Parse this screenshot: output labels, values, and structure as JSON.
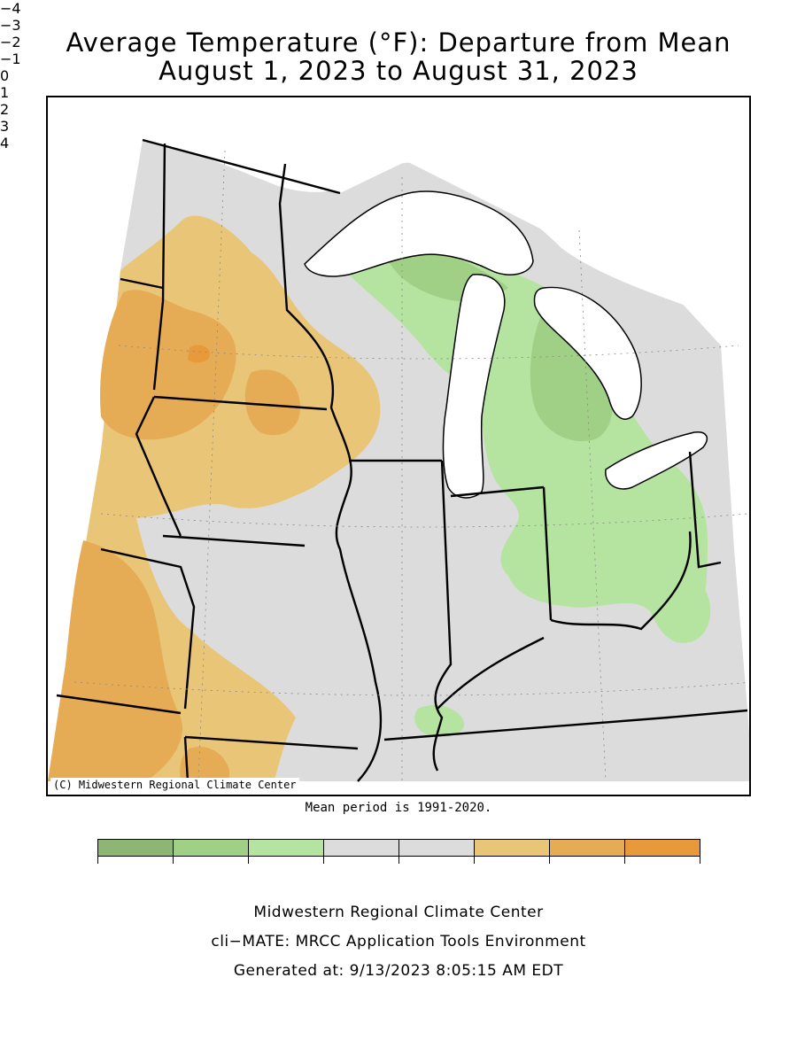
{
  "title_line1": "Average Temperature (°F): Departure from Mean",
  "title_line2": "August 1, 2023 to August 31, 2023",
  "copyright": "(C) Midwestern Regional Climate Center",
  "mean_period": "Mean period is 1991-2020.",
  "legend": {
    "bins": [
      {
        "from": -4,
        "to": -3,
        "color": "#8db574"
      },
      {
        "from": -3,
        "to": -2,
        "color": "#a0cf86"
      },
      {
        "from": -2,
        "to": -1,
        "color": "#b5e3a0"
      },
      {
        "from": -1,
        "to": 0,
        "color": "#dcdcdc"
      },
      {
        "from": 0,
        "to": 1,
        "color": "#dcdcdc"
      },
      {
        "from": 1,
        "to": 2,
        "color": "#e9c578"
      },
      {
        "from": 2,
        "to": 3,
        "color": "#e6ac55"
      },
      {
        "from": 3,
        "to": 4,
        "color": "#e89a3a"
      }
    ],
    "tick_labels": [
      "−4",
      "−3",
      "−2",
      "−1",
      "0",
      "1",
      "2",
      "3",
      "4"
    ]
  },
  "footer": {
    "line1": "Midwestern Regional Climate Center",
    "line2": "cli−MATE: MRCC Application Tools Environment",
    "line3": "Generated at: 9/13/2023 8:05:15 AM EDT"
  },
  "colors": {
    "near_normal": "#dcdcdc",
    "warm_1_2": "#e9c578",
    "warm_2_3": "#e6ac55",
    "warm_3_4": "#e89a3a",
    "cool_1_2": "#b5e3a0",
    "cool_2_3": "#a0cf86",
    "water": "#ffffff",
    "border": "#000000"
  }
}
